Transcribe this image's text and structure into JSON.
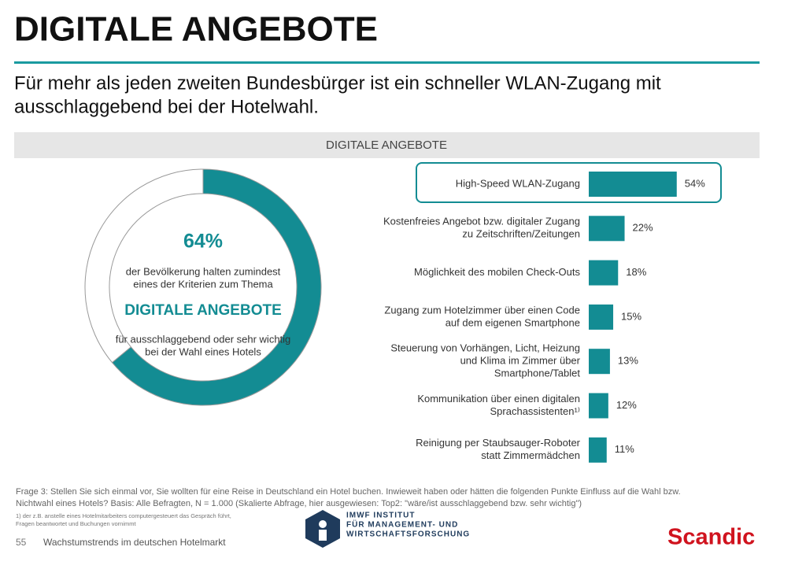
{
  "header": {
    "title": "DIGITALE ANGEBOTE",
    "subtitle": [
      "Für mehr als jeden zweiten Bundesbürger ist ein schneller WLAN-Zugang mit",
      "ausschlaggebend bei der Hotelwahl."
    ]
  },
  "panel_title": "DIGITALE ANGEBOTE",
  "chart_data": [
    {
      "type": "pie",
      "values": [
        64,
        36
      ],
      "value_labels": [
        "64%",
        null
      ],
      "colors": [
        "#138c93",
        "#ffffff"
      ],
      "annotations": {
        "before": [
          "der Bevölkerung halten zumindest",
          "eines der Kriterien zum Thema"
        ],
        "highlight": "DIGITALE ANGEBOTE",
        "after": [
          "für ausschlaggebend oder sehr wichtig",
          "bei der Wahl eines Hotels"
        ]
      }
    },
    {
      "type": "hbar",
      "color": "#138c93",
      "xlim": [
        0,
        100
      ],
      "categories": [
        [
          "High-Speed WLAN-Zugang"
        ],
        [
          "Kostenfreies Angebot bzw. digitaler Zugang",
          "zu Zeitschriften/Zeitungen"
        ],
        [
          "Möglichkeit des mobilen Check-Outs"
        ],
        [
          "Zugang zum Hotelzimmer über einen Code",
          "auf dem eigenen Smartphone"
        ],
        [
          "Steuerung von Vorhängen, Licht, Heizung",
          "und Klima im Zimmer über",
          "Smartphone/Tablet"
        ],
        [
          "Kommunikation über einen digitalen",
          "Sprachassistenten¹⁾"
        ],
        [
          "Reinigung per Staubsauger-Roboter",
          "statt Zimmermädchen"
        ]
      ],
      "values": [
        54,
        22,
        18,
        15,
        13,
        12,
        11
      ],
      "value_labels": [
        "54%",
        "22%",
        "18%",
        "15%",
        "13%",
        "12%",
        "11%"
      ]
    }
  ],
  "footer": {
    "question": [
      "Frage 3: Stellen Sie sich einmal vor, Sie wollten für eine Reise in Deutschland ein Hotel buchen. Inwieweit haben oder hätten die folgenden Punkte Einfluss auf die Wahl bzw.",
      "Nichtwahl eines Hotels? Basis: Alle Befragten, N = 1.000 (Skalierte Abfrage, hier ausgewiesen: Top2: \"wäre/ist ausschlaggebend bzw. sehr wichtig\")"
    ],
    "footnote": [
      "1) der z.B. anstelle eines Hotelmitarbeiters computergesteuert das Gespräch führt,",
      "Fragen beantwortet und Buchungen vornimmt"
    ],
    "page_number": "55",
    "report": "Wachstumstrends im deutschen Hotelmarkt",
    "logo": [
      "IMWF INSTITUT",
      "FÜR MANAGEMENT- UND",
      "WIRTSCHAFTSFORSCHUNG"
    ],
    "brand": "Scandic"
  }
}
